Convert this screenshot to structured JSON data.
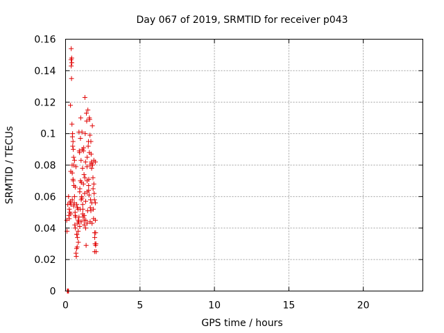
{
  "chart_data": {
    "type": "scatter",
    "title": "Day 067 of 2019, SRMTID for receiver p043",
    "xlabel": "GPS time / hours",
    "ylabel": "SRMTID / TECUs",
    "xlim": [
      0,
      24
    ],
    "ylim": [
      0,
      0.16
    ],
    "grid": true,
    "marker": "+",
    "color": "#e00000",
    "xticks": [
      0,
      5,
      10,
      15,
      20
    ],
    "xtick_labels": [
      "0",
      "5",
      "10",
      "15",
      "20"
    ],
    "yticks": [
      0,
      0.02,
      0.04,
      0.06,
      0.08,
      0.1,
      0.12,
      0.14,
      0.16
    ],
    "ytick_labels": [
      "0",
      "0.02",
      "0.04",
      "0.06",
      "0.08",
      "0.1",
      "0.12",
      "0.14",
      "0.16"
    ],
    "series": [
      {
        "name": "p043",
        "points": [
          [
            0.08,
            0.045
          ],
          [
            0.1,
            0.038
          ],
          [
            0.12,
            0.0
          ],
          [
            0.15,
            0.0
          ],
          [
            0.18,
            0.0
          ],
          [
            0.2,
            0.0
          ],
          [
            0.15,
            0.055
          ],
          [
            0.2,
            0.06
          ],
          [
            0.22,
            0.048
          ],
          [
            0.25,
            0.046
          ],
          [
            0.28,
            0.05
          ],
          [
            0.3,
            0.056
          ],
          [
            0.32,
            0.057
          ],
          [
            0.33,
            0.118
          ],
          [
            0.35,
            0.076
          ],
          [
            0.36,
            0.055
          ],
          [
            0.37,
            0.147
          ],
          [
            0.38,
            0.143
          ],
          [
            0.38,
            0.154
          ],
          [
            0.4,
            0.135
          ],
          [
            0.41,
            0.148
          ],
          [
            0.42,
            0.145
          ],
          [
            0.43,
            0.106
          ],
          [
            0.44,
            0.08
          ],
          [
            0.45,
            0.075
          ],
          [
            0.46,
            0.098
          ],
          [
            0.47,
            0.1
          ],
          [
            0.48,
            0.092
          ],
          [
            0.5,
            0.095
          ],
          [
            0.5,
            0.071
          ],
          [
            0.52,
            0.07
          ],
          [
            0.52,
            0.09
          ],
          [
            0.54,
            0.085
          ],
          [
            0.55,
            0.08
          ],
          [
            0.56,
            0.067
          ],
          [
            0.58,
            0.056
          ],
          [
            0.6,
            0.06
          ],
          [
            0.62,
            0.042
          ],
          [
            0.64,
            0.05
          ],
          [
            0.65,
            0.066
          ],
          [
            0.66,
            0.04
          ],
          [
            0.68,
            0.047
          ],
          [
            0.7,
            0.024
          ],
          [
            0.72,
            0.022
          ],
          [
            0.74,
            0.027
          ],
          [
            0.75,
            0.055
          ],
          [
            0.76,
            0.036
          ],
          [
            0.78,
            0.028
          ],
          [
            0.8,
            0.034
          ],
          [
            0.82,
            0.043
          ],
          [
            0.84,
            0.052
          ],
          [
            0.85,
            0.045
          ],
          [
            0.86,
            0.031
          ],
          [
            0.88,
            0.044
          ],
          [
            0.9,
            0.101
          ],
          [
            0.92,
            0.089
          ],
          [
            0.94,
            0.088
          ],
          [
            0.95,
            0.063
          ],
          [
            0.96,
            0.065
          ],
          [
            0.98,
            0.052
          ],
          [
            1.0,
            0.097
          ],
          [
            1.02,
            0.11
          ],
          [
            1.04,
            0.083
          ],
          [
            1.05,
            0.058
          ],
          [
            1.06,
            0.069
          ],
          [
            1.08,
            0.06
          ],
          [
            1.1,
            0.101
          ],
          [
            1.12,
            0.09
          ],
          [
            1.14,
            0.078
          ],
          [
            1.15,
            0.055
          ],
          [
            1.16,
            0.052
          ],
          [
            1.18,
            0.047
          ],
          [
            1.2,
            0.089
          ],
          [
            1.22,
            0.091
          ],
          [
            1.24,
            0.074
          ],
          [
            1.25,
            0.048
          ],
          [
            1.26,
            0.045
          ],
          [
            1.28,
            0.062
          ],
          [
            1.3,
            0.123
          ],
          [
            1.32,
            0.1
          ],
          [
            1.34,
            0.082
          ],
          [
            1.35,
            0.057
          ],
          [
            1.36,
            0.045
          ],
          [
            1.38,
            0.029
          ],
          [
            1.4,
            0.113
          ],
          [
            1.42,
            0.108
          ],
          [
            1.44,
            0.079
          ],
          [
            1.45,
            0.07
          ],
          [
            1.46,
            0.063
          ],
          [
            1.48,
            0.051
          ],
          [
            1.5,
            0.115
          ],
          [
            1.52,
            0.092
          ],
          [
            1.54,
            0.095
          ],
          [
            1.55,
            0.067
          ],
          [
            1.56,
            0.071
          ],
          [
            1.58,
            0.061
          ],
          [
            1.6,
            0.11
          ],
          [
            1.62,
            0.109
          ],
          [
            1.64,
            0.099
          ],
          [
            1.65,
            0.08
          ],
          [
            1.66,
            0.053
          ],
          [
            1.68,
            0.058
          ],
          [
            1.7,
            0.095
          ],
          [
            1.72,
            0.087
          ],
          [
            1.74,
            0.082
          ],
          [
            1.75,
            0.081
          ],
          [
            1.76,
            0.056
          ],
          [
            1.78,
            0.043
          ],
          [
            1.8,
            0.105
          ],
          [
            1.82,
            0.08
          ],
          [
            1.84,
            0.072
          ],
          [
            1.85,
            0.065
          ],
          [
            1.86,
            0.052
          ],
          [
            1.88,
            0.046
          ],
          [
            1.9,
            0.083
          ],
          [
            1.92,
            0.062
          ],
          [
            1.94,
            0.058
          ],
          [
            1.95,
            0.037
          ],
          [
            1.96,
            0.034
          ],
          [
            1.98,
            0.03
          ],
          [
            2.0,
            0.082
          ],
          [
            2.0,
            0.045
          ],
          [
            2.02,
            0.037
          ],
          [
            2.02,
            0.029
          ],
          [
            2.04,
            0.03
          ],
          [
            2.05,
            0.025
          ],
          [
            1.95,
            0.025
          ],
          [
            1.7,
            0.051
          ],
          [
            1.65,
            0.044
          ],
          [
            1.45,
            0.043
          ],
          [
            1.35,
            0.04
          ],
          [
            1.25,
            0.042
          ],
          [
            1.15,
            0.049
          ],
          [
            1.05,
            0.044
          ],
          [
            0.95,
            0.041
          ],
          [
            0.85,
            0.038
          ],
          [
            0.75,
            0.036
          ],
          [
            0.65,
            0.048
          ],
          [
            0.55,
            0.054
          ],
          [
            0.45,
            0.058
          ],
          [
            0.35,
            0.049
          ],
          [
            0.25,
            0.052
          ],
          [
            0.6,
            0.083
          ],
          [
            0.7,
            0.079
          ],
          [
            1.3,
            0.072
          ],
          [
            1.55,
            0.064
          ],
          [
            1.9,
            0.068
          ],
          [
            2.0,
            0.056
          ],
          [
            1.1,
            0.059
          ],
          [
            0.9,
            0.047
          ],
          [
            0.8,
            0.053
          ],
          [
            1.6,
            0.088
          ],
          [
            1.75,
            0.078
          ],
          [
            1.45,
            0.085
          ],
          [
            1.2,
            0.068
          ],
          [
            1.0,
            0.07
          ]
        ]
      }
    ]
  }
}
